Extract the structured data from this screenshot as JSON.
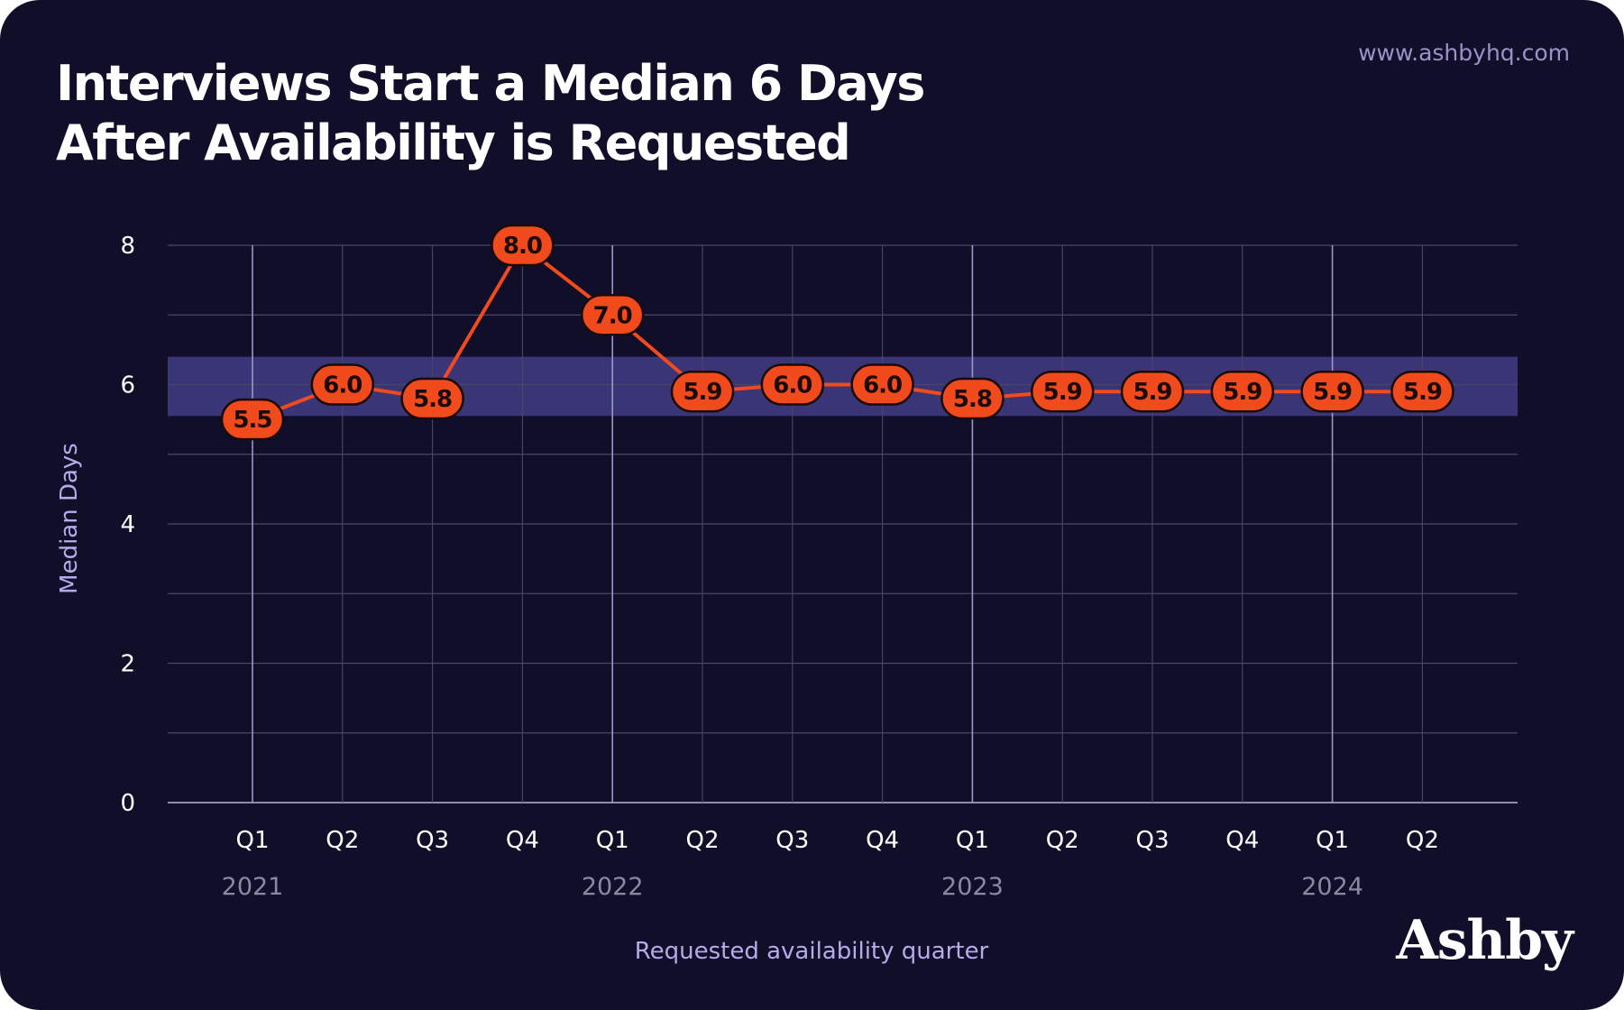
{
  "header": {
    "title_line1": "Interviews Start a Median 6 Days",
    "title_line2": "After Availability is Requested",
    "website": "www.ashbyhq.com",
    "brand": "Ashby"
  },
  "colors": {
    "background": "#100e29",
    "line": "#f04a1d",
    "band": "#3a3577",
    "grid": "#4a4766",
    "year_grid": "#9c97c4",
    "axis_label": "#b5abe8"
  },
  "chart_data": {
    "type": "line",
    "title": "Interviews Start a Median 6 Days After Availability is Requested",
    "xlabel": "Requested availability quarter",
    "ylabel": "Median Days",
    "categories": [
      "Q1",
      "Q2",
      "Q3",
      "Q4",
      "Q1",
      "Q2",
      "Q3",
      "Q4",
      "Q1",
      "Q2",
      "Q3",
      "Q4",
      "Q1",
      "Q2"
    ],
    "year_labels": [
      {
        "label": "2021",
        "index": 0
      },
      {
        "label": "2022",
        "index": 4
      },
      {
        "label": "2023",
        "index": 8
      },
      {
        "label": "2024",
        "index": 12
      }
    ],
    "values": [
      5.5,
      6.0,
      5.8,
      8.0,
      7.0,
      5.9,
      6.0,
      6.0,
      5.8,
      5.9,
      5.9,
      5.9,
      5.9,
      5.9
    ],
    "value_labels": [
      "5.5",
      "6.0",
      "5.8",
      "8.0",
      "7.0",
      "5.9",
      "6.0",
      "6.0",
      "5.8",
      "5.9",
      "5.9",
      "5.9",
      "5.9",
      "5.9"
    ],
    "band": [
      5.55,
      6.4
    ],
    "ylim": [
      0,
      8
    ],
    "yticks": [
      0,
      2,
      4,
      6,
      8
    ],
    "ytick_labels": [
      "0",
      "2",
      "4",
      "6",
      "8"
    ],
    "grid": true
  }
}
